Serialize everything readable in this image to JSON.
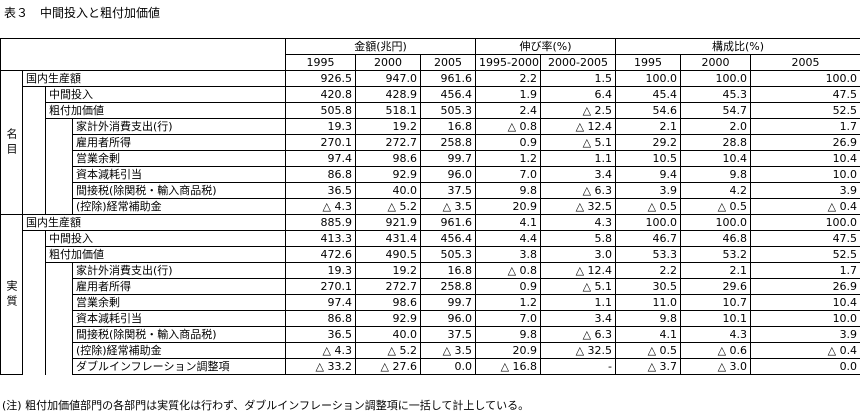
{
  "title": "表３　中間投入と粗付加価値",
  "table": {
    "groups": [
      {
        "label": "金額(兆円)",
        "columns": [
          "1995",
          "2000",
          "2005"
        ]
      },
      {
        "label": "伸び率(%)",
        "columns": [
          "1995-2000",
          "2000-2005"
        ]
      },
      {
        "label": "構成比(%)",
        "columns": [
          "1995",
          "2000",
          "2005"
        ]
      }
    ],
    "sections": [
      {
        "label": "名目",
        "rows": [
          {
            "label": "国内生産額",
            "level": 0,
            "values": [
              "926.5",
              "947.0",
              "961.6",
              "2.2",
              "1.5",
              "100.0",
              "100.0",
              "100.0"
            ]
          },
          {
            "label": "中間投入",
            "level": 1,
            "values": [
              "420.8",
              "428.9",
              "456.4",
              "1.9",
              "6.4",
              "45.4",
              "45.3",
              "47.5"
            ]
          },
          {
            "label": "粗付加価値",
            "level": 1,
            "values": [
              "505.8",
              "518.1",
              "505.3",
              "2.4",
              "△ 2.5",
              "54.6",
              "54.7",
              "52.5"
            ]
          },
          {
            "label": "家計外消費支出(行)",
            "level": 2,
            "values": [
              "19.3",
              "19.2",
              "16.8",
              "△ 0.8",
              "△ 12.4",
              "2.1",
              "2.0",
              "1.7"
            ]
          },
          {
            "label": "雇用者所得",
            "level": 2,
            "values": [
              "270.1",
              "272.7",
              "258.8",
              "0.9",
              "△ 5.1",
              "29.2",
              "28.8",
              "26.9"
            ]
          },
          {
            "label": "営業余剰",
            "level": 2,
            "values": [
              "97.4",
              "98.6",
              "99.7",
              "1.2",
              "1.1",
              "10.5",
              "10.4",
              "10.4"
            ]
          },
          {
            "label": "資本減耗引当",
            "level": 2,
            "values": [
              "86.8",
              "92.9",
              "96.0",
              "7.0",
              "3.4",
              "9.4",
              "9.8",
              "10.0"
            ]
          },
          {
            "label": "間接税(除関税・輸入商品税)",
            "level": 2,
            "values": [
              "36.5",
              "40.0",
              "37.5",
              "9.8",
              "△ 6.3",
              "3.9",
              "4.2",
              "3.9"
            ]
          },
          {
            "label": "(控除)経常補助金",
            "level": 2,
            "values": [
              "△ 4.3",
              "△ 5.2",
              "△ 3.5",
              "20.9",
              "△ 32.5",
              "△ 0.5",
              "△ 0.5",
              "△ 0.4"
            ]
          }
        ]
      },
      {
        "label": "実質",
        "rows": [
          {
            "label": "国内生産額",
            "level": 0,
            "values": [
              "885.9",
              "921.9",
              "961.6",
              "4.1",
              "4.3",
              "100.0",
              "100.0",
              "100.0"
            ]
          },
          {
            "label": "中間投入",
            "level": 1,
            "values": [
              "413.3",
              "431.4",
              "456.4",
              "4.4",
              "5.8",
              "46.7",
              "46.8",
              "47.5"
            ]
          },
          {
            "label": "粗付加価値",
            "level": 1,
            "values": [
              "472.6",
              "490.5",
              "505.3",
              "3.8",
              "3.0",
              "53.3",
              "53.2",
              "52.5"
            ]
          },
          {
            "label": "家計外消費支出(行)",
            "level": 2,
            "values": [
              "19.3",
              "19.2",
              "16.8",
              "△ 0.8",
              "△ 12.4",
              "2.2",
              "2.1",
              "1.7"
            ]
          },
          {
            "label": "雇用者所得",
            "level": 2,
            "values": [
              "270.1",
              "272.7",
              "258.8",
              "0.9",
              "△ 5.1",
              "30.5",
              "29.6",
              "26.9"
            ]
          },
          {
            "label": "営業余剰",
            "level": 2,
            "values": [
              "97.4",
              "98.6",
              "99.7",
              "1.2",
              "1.1",
              "11.0",
              "10.7",
              "10.4"
            ]
          },
          {
            "label": "資本減耗引当",
            "level": 2,
            "values": [
              "86.8",
              "92.9",
              "96.0",
              "7.0",
              "3.4",
              "9.8",
              "10.1",
              "10.0"
            ]
          },
          {
            "label": "間接税(除関税・輸入商品税)",
            "level": 2,
            "values": [
              "36.5",
              "40.0",
              "37.5",
              "9.8",
              "△ 6.3",
              "4.1",
              "4.3",
              "3.9"
            ]
          },
          {
            "label": "(控除)経常補助金",
            "level": 2,
            "values": [
              "△ 4.3",
              "△ 5.2",
              "△ 3.5",
              "20.9",
              "△ 32.5",
              "△ 0.5",
              "△ 0.6",
              "△ 0.4"
            ]
          },
          {
            "label": "ダブルインフレーション調整項",
            "level": 2,
            "values": [
              "△ 33.2",
              "△ 27.6",
              "0.0",
              "△ 16.8",
              "-",
              "△ 3.7",
              "△ 3.0",
              "0.0"
            ]
          }
        ]
      }
    ]
  },
  "note": "(注) 粗付加価値部門の各部門は実質化は行わず、ダブルインフレーション調整項に一括して計上している。"
}
